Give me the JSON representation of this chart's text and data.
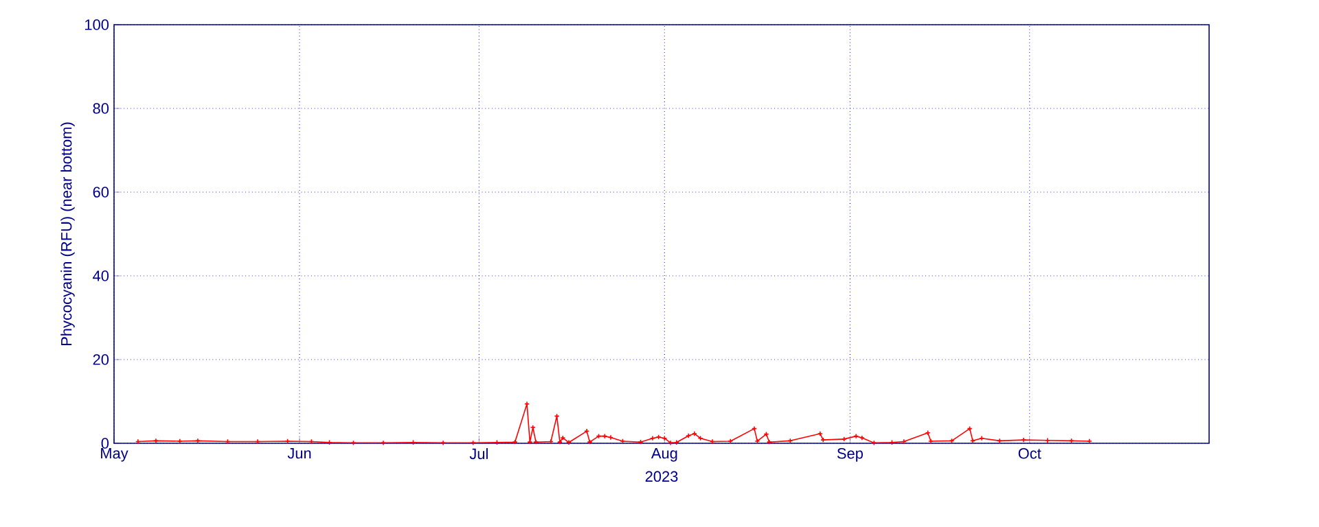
{
  "chart_data": {
    "type": "line",
    "ylabel": "Phycocyanin (RFU) (near bottom)",
    "xlabel": "2023",
    "xlim": [
      "2023-05-01",
      "2023-10-31"
    ],
    "ylim": [
      0,
      100
    ],
    "yticks": [
      0,
      20,
      40,
      60,
      80,
      100
    ],
    "xticks": [
      {
        "value": "2023-05-01",
        "label": "May"
      },
      {
        "value": "2023-06-01",
        "label": "Jun"
      },
      {
        "value": "2023-07-01",
        "label": "Jul"
      },
      {
        "value": "2023-08-01",
        "label": "Aug"
      },
      {
        "value": "2023-09-01",
        "label": "Sep"
      },
      {
        "value": "2023-10-01",
        "label": "Oct"
      }
    ],
    "grid": true,
    "marker": "cross",
    "line_style": "solid",
    "x": [
      "2023-05-05",
      "2023-05-08",
      "2023-05-12",
      "2023-05-15",
      "2023-05-20",
      "2023-05-25",
      "2023-05-30",
      "2023-06-03",
      "2023-06-06",
      "2023-06-10",
      "2023-06-15",
      "2023-06-20",
      "2023-06-25",
      "2023-06-30",
      "2023-07-04",
      "2023-07-07",
      "2023-07-09",
      "2023-07-09T12:00",
      "2023-07-10",
      "2023-07-10T12:00",
      "2023-07-13",
      "2023-07-14",
      "2023-07-14T12:00",
      "2023-07-15",
      "2023-07-16",
      "2023-07-19",
      "2023-07-19T12:00",
      "2023-07-21",
      "2023-07-22",
      "2023-07-23",
      "2023-07-25",
      "2023-07-28",
      "2023-07-30",
      "2023-07-31",
      "2023-08-01",
      "2023-08-02",
      "2023-08-03",
      "2023-08-05",
      "2023-08-06",
      "2023-08-07",
      "2023-08-09",
      "2023-08-12",
      "2023-08-16",
      "2023-08-16T12:00",
      "2023-08-18",
      "2023-08-18T12:00",
      "2023-08-22",
      "2023-08-27",
      "2023-08-27T12:00",
      "2023-08-31",
      "2023-09-02",
      "2023-09-03",
      "2023-09-05",
      "2023-09-08",
      "2023-09-10",
      "2023-09-14",
      "2023-09-14T12:00",
      "2023-09-18",
      "2023-09-21",
      "2023-09-21T12:00",
      "2023-09-23",
      "2023-09-26",
      "2023-09-30",
      "2023-10-04",
      "2023-10-08",
      "2023-10-11"
    ],
    "series": [
      {
        "color": "#ff0000",
        "values": [
          0.4,
          0.6,
          0.5,
          0.6,
          0.4,
          0.4,
          0.5,
          0.4,
          0.2,
          0.1,
          0.1,
          0.2,
          0.1,
          0.1,
          0.2,
          0.3,
          9.4,
          0.3,
          3.8,
          0.3,
          0.4,
          6.5,
          0.3,
          1.3,
          0.2,
          2.9,
          0.3,
          1.7,
          1.7,
          1.4,
          0.5,
          0.3,
          1.2,
          1.5,
          1.2,
          0.1,
          0.2,
          1.8,
          2.3,
          1.2,
          0.4,
          0.5,
          3.5,
          0.5,
          2.2,
          0.3,
          0.6,
          2.3,
          0.8,
          1.0,
          1.7,
          1.3,
          0.1,
          0.2,
          0.4,
          2.5,
          0.5,
          0.6,
          3.5,
          0.6,
          1.2,
          0.6,
          0.8,
          0.7,
          0.6,
          0.5
        ]
      }
    ]
  }
}
